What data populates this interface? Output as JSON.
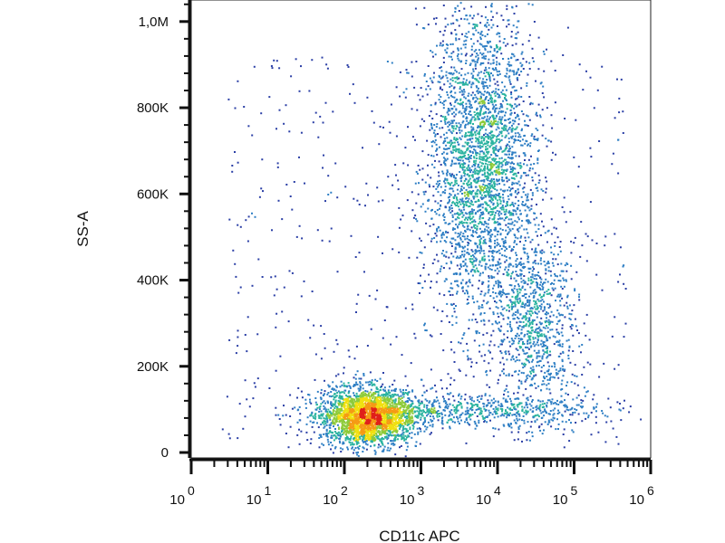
{
  "chart_data": {
    "type": "scatter",
    "title": "",
    "xlabel": "CD11c APC",
    "ylabel": "SS-A",
    "xscale": "log",
    "xlim": [
      1,
      1000000
    ],
    "ylim": [
      0,
      1050000
    ],
    "grid": false,
    "legend": "none",
    "x_ticks": [
      {
        "base": "10",
        "exp": "0",
        "value": 1
      },
      {
        "base": "10",
        "exp": "1",
        "value": 10
      },
      {
        "base": "10",
        "exp": "2",
        "value": 100
      },
      {
        "base": "10",
        "exp": "3",
        "value": 1000
      },
      {
        "base": "10",
        "exp": "4",
        "value": 10000
      },
      {
        "base": "10",
        "exp": "5",
        "value": 100000
      },
      {
        "base": "10",
        "exp": "6",
        "value": 1000000
      }
    ],
    "y_ticks": [
      {
        "label": "0",
        "value": 0
      },
      {
        "label": "200K",
        "value": 200000
      },
      {
        "label": "400K",
        "value": 400000
      },
      {
        "label": "600K",
        "value": 600000
      },
      {
        "label": "800K",
        "value": 800000
      },
      {
        "label": "1,0M",
        "value": 1000000
      }
    ],
    "colormap": [
      "#2b3fa6",
      "#2f7fc4",
      "#2bb3a0",
      "#8ecb3a",
      "#f0e010",
      "#f59a15",
      "#e0201a"
    ],
    "populations": [
      {
        "x_center": 200,
        "y_center": 85000,
        "density": "high"
      },
      {
        "x_center": 6000,
        "y_center": 680000,
        "density": "medium"
      },
      {
        "x_center": 30000,
        "y_center": 300000,
        "density": "low"
      },
      {
        "x_center": 4000,
        "y_center": 100000,
        "density": "low"
      }
    ]
  }
}
